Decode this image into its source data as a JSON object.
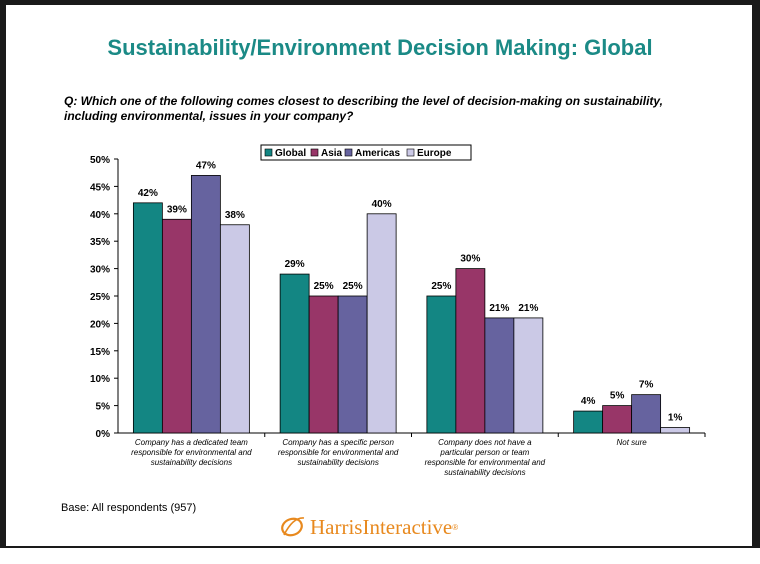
{
  "title": "Sustainability/Environment Decision Making: Global",
  "question": "Q:  Which one of the following comes closest to describing the level of decision-making on sustainability, including environmental, issues in your company?",
  "base": "Base: All respondents (957)",
  "logo": {
    "text": "HarrisInteractive",
    "mark": "®",
    "icon": "harris-o-logo-icon"
  },
  "colors": {
    "title": "#1b8a86",
    "logo": "#e8891e"
  },
  "chart_data": {
    "type": "bar",
    "categories": [
      [
        "Company has a dedicated team",
        "responsible for environmental and",
        "sustainability decisions"
      ],
      [
        "Company has a specific person",
        "responsible for environmental and",
        "sustainability decisions"
      ],
      [
        "Company does not have a",
        "particular person or team",
        "responsible for environmental and",
        "sustainability decisions"
      ],
      [
        "Not sure"
      ]
    ],
    "series": [
      {
        "name": "Global",
        "color": "#138683",
        "values": [
          42,
          29,
          25,
          4
        ]
      },
      {
        "name": "Asia",
        "color": "#983668",
        "values": [
          39,
          25,
          30,
          5
        ]
      },
      {
        "name": "Americas",
        "color": "#66639f",
        "values": [
          47,
          25,
          21,
          7
        ]
      },
      {
        "name": "Europe",
        "color": "#cbc9e6",
        "values": [
          38,
          40,
          21,
          1
        ]
      }
    ],
    "value_suffix": "%",
    "ylim": [
      0,
      50
    ],
    "yticks": [
      "0%",
      "5%",
      "10%",
      "15%",
      "20%",
      "25%",
      "30%",
      "35%",
      "40%",
      "45%",
      "50%"
    ],
    "legend_position": "top-center",
    "grid": false
  }
}
